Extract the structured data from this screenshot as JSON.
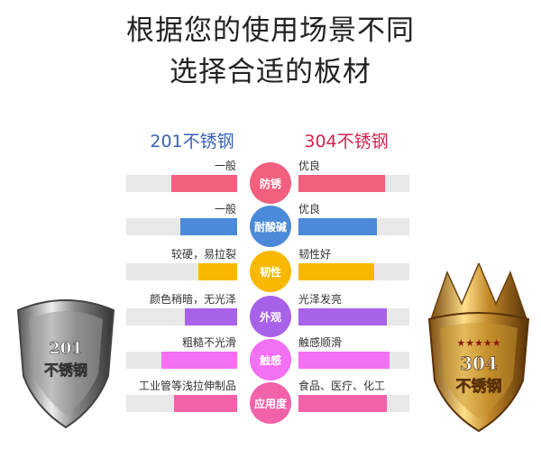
{
  "title": {
    "line1": "根据您的使用场景不同",
    "line2": "选择合适的板材"
  },
  "columns": {
    "left": "201不锈钢",
    "right": "304不锈钢",
    "left_color": "#3a62b4",
    "right_color": "#d4234f"
  },
  "rows": [
    {
      "name": "防锈",
      "color": "#f2607f",
      "left_text": "一般",
      "right_text": "优良",
      "left_level": 0.59,
      "right_level": 0.78
    },
    {
      "name": "耐酸碱",
      "color": "#4a8ad8",
      "left_text": "一般",
      "right_text": "优良",
      "left_level": 0.51,
      "right_level": 0.71
    },
    {
      "name": "韧性",
      "color": "#f8b800",
      "left_text": "较硬，易拉裂",
      "right_text": "韧性好",
      "left_level": 0.35,
      "right_level": 0.68
    },
    {
      "name": "外观",
      "color": "#a862ea",
      "left_text": "颜色稍暗，无光泽",
      "right_text": "光泽发亮",
      "left_level": 0.47,
      "right_level": 0.8
    },
    {
      "name": "触感",
      "color": "#f270f2",
      "left_text": "粗糙不光滑",
      "right_text": "触感顺滑",
      "left_level": 0.68,
      "right_level": 0.82
    },
    {
      "name": "应用度",
      "color": "#f262a8",
      "left_text": "工业管等浅拉伸制品",
      "right_text": "食品、医疗、化工",
      "left_level": 0.57,
      "right_level": 0.8
    }
  ],
  "badges": {
    "left": {
      "line1": "201",
      "line2": "不锈钢"
    },
    "right": {
      "line1": "304",
      "line2": "不锈钢",
      "stars": "★★★★★"
    }
  }
}
